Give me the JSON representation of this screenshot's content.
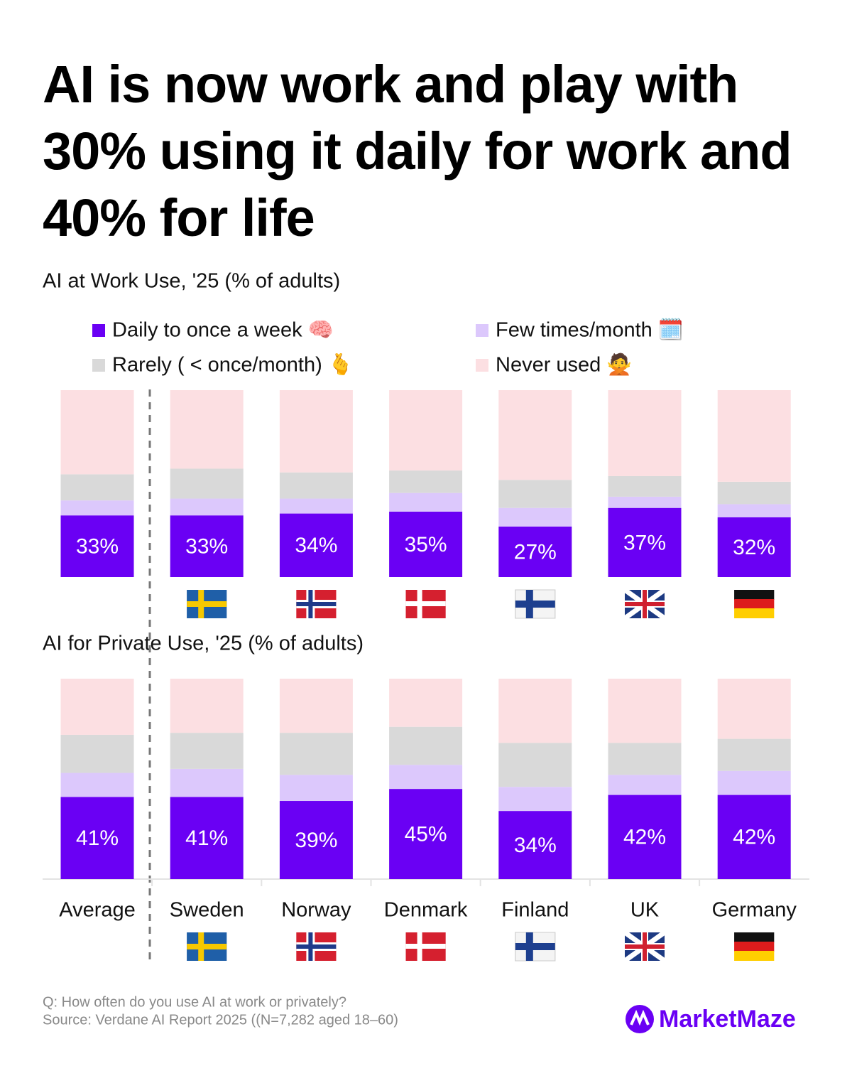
{
  "title": "AI is now work and play with 30% using it daily for work and 40% for life",
  "chart_data": [
    {
      "type": "bar",
      "stacked": true,
      "title": "AI at Work Use, '25 (% of adults)",
      "ylim": [
        0,
        100
      ],
      "series": [
        {
          "name": "Daily to once a week 🧠",
          "color": "#6a00f4",
          "values": [
            33,
            33,
            34,
            35,
            27,
            37,
            32
          ],
          "value_labels": [
            "33%",
            "33%",
            "34%",
            "35%",
            "27%",
            "37%",
            "32%"
          ]
        },
        {
          "name": "Few times/month 🗓️",
          "color": "#dcc8fc",
          "values": [
            8,
            9,
            8,
            10,
            10,
            6,
            7
          ]
        },
        {
          "name": "Rarely ( < once/month) 🫰",
          "color": "#d9d9d9",
          "values": [
            14,
            16,
            14,
            12,
            15,
            11,
            12
          ]
        },
        {
          "name": "Never used 🙅",
          "color": "#fcdfe2",
          "values": [
            45,
            42,
            44,
            43,
            48,
            46,
            49
          ]
        }
      ]
    },
    {
      "type": "bar",
      "stacked": true,
      "title": "AI for Private Use, '25 (% of adults)",
      "ylim": [
        0,
        100
      ],
      "categories": [
        "Average",
        "Sweden",
        "Norway",
        "Denmark",
        "Finland",
        "UK",
        "Germany"
      ],
      "series": [
        {
          "color": "#6a00f4",
          "values": [
            41,
            41,
            39,
            45,
            34,
            42,
            42
          ],
          "value_labels": [
            "41%",
            "41%",
            "39%",
            "45%",
            "34%",
            "42%",
            "42%"
          ]
        },
        {
          "color": "#dcc8fc",
          "values": [
            12,
            14,
            13,
            12,
            12,
            10,
            12
          ]
        },
        {
          "color": "#d9d9d9",
          "values": [
            19,
            18,
            21,
            19,
            22,
            16,
            16
          ]
        },
        {
          "color": "#fcdfe2",
          "values": [
            28,
            27,
            27,
            24,
            32,
            32,
            30
          ]
        }
      ]
    }
  ],
  "footer": {
    "question": "Q: How often do you use AI at work or privately?",
    "source": "Source: Verdane AI Report 2025 ((N=7,282 aged 18–60)",
    "brand": "MarketMaze"
  }
}
